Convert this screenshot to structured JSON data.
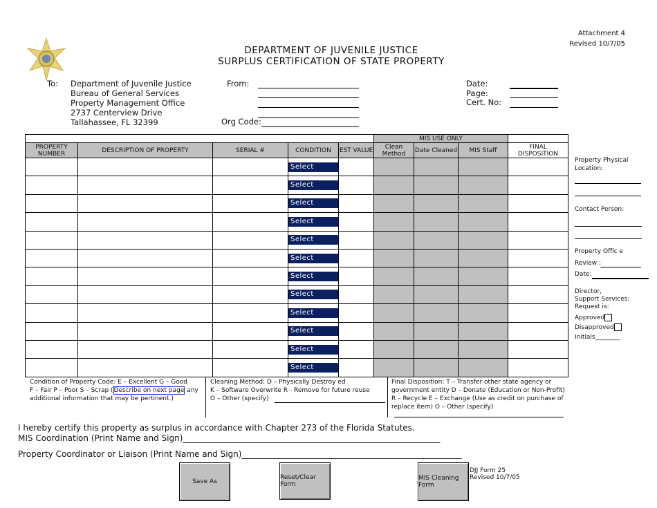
{
  "header": {
    "attachment": "Attachment 4",
    "revised": "Revised 10/7/05",
    "title1": "DEPARTMENT OF JUVENILE JUSTICE",
    "title2": "SURPLUS CERTIFICATION OF STATE PROPERTY",
    "seal": "Florida Department of Juvenile Justice seal"
  },
  "to": {
    "label": "To:",
    "lines": [
      "Department of Juvenile Justice",
      "Bureau of General Services",
      "Property Management Office",
      "2737 Centerview Drive",
      "Tallahassee, FL  32399"
    ]
  },
  "from_label": "From:",
  "org_code_label": "Org Code:",
  "date_label": "Date:",
  "page_label": "Page:",
  "cert_label": "Cert. No:",
  "table": {
    "mis_use_only": "MIS USE ONLY",
    "columns": [
      "PROPERTY NUMBER",
      "DESCRIPTION OF PROPERTY",
      "SERIAL #",
      "CONDITION",
      "EST VALUE",
      "Clean Method",
      "Date Cleaned",
      "MIS Staff",
      "FINAL DISPOSITION"
    ],
    "rows": [
      {
        "condition": "Select"
      },
      {
        "condition": "Select"
      },
      {
        "condition": "Select"
      },
      {
        "condition": "Select"
      },
      {
        "condition": "Select"
      },
      {
        "condition": "Select"
      },
      {
        "condition": "Select"
      },
      {
        "condition": "Select"
      },
      {
        "condition": "Select"
      },
      {
        "condition": "Select"
      },
      {
        "condition": "Select"
      },
      {
        "condition": "Select"
      }
    ]
  },
  "side": {
    "location": "Property Physical Location:",
    "contact": "Contact Person:",
    "office": "Property Offic e",
    "review": "Review :",
    "date": "Date:",
    "director": "Director,",
    "support": "Support Services:",
    "request": "Request is:",
    "approved": "Approved",
    "disapproved": "Disapproved",
    "initials": "Initials________"
  },
  "legend": {
    "cond1": "Condition of Property Code: E – Excellent   G – Good",
    "cond2a": "F – Fair P – Poor  S – Scrap (",
    "cond_link": "Describe on next page",
    "cond2b": " any",
    "cond3": "additional information that may be pertinent.)",
    "clean1": "Cleaning Method:  D – Physically Destroy ed",
    "clean2": "K – Software Overwrite   R - Remove for future reuse",
    "clean3": "O – Other (specify)",
    "final1": "Final Disposition:  T – Transfer other state agency or",
    "final2": "government entity   D – Donate (Education or Non-Profit)",
    "final3": "R – Recycle   E – Exchange (Use as credit on purchase of",
    "final4": "replace item)   O – Other (specify)"
  },
  "certify": "I hereby certify this property as surplus in accordance with Chapter 273 of the Florida Statutes.",
  "mis_coord": "MIS Coordination (Print Name and Sign)______________________________________________________________",
  "prop_coord": "Property Coordinator or Liaison (Print Name and Sign)_____________________________________________________",
  "buttons": {
    "save": "Save As",
    "reset": "Reset/Clear Form",
    "mis": "MIS Cleaning Form"
  },
  "footer": {
    "form": "DJJ  Form 25",
    "revised": "Revised 10/7/05"
  },
  "colors": {
    "select_bg": "#0b2060",
    "mis_gray": "#c0c0c0"
  }
}
